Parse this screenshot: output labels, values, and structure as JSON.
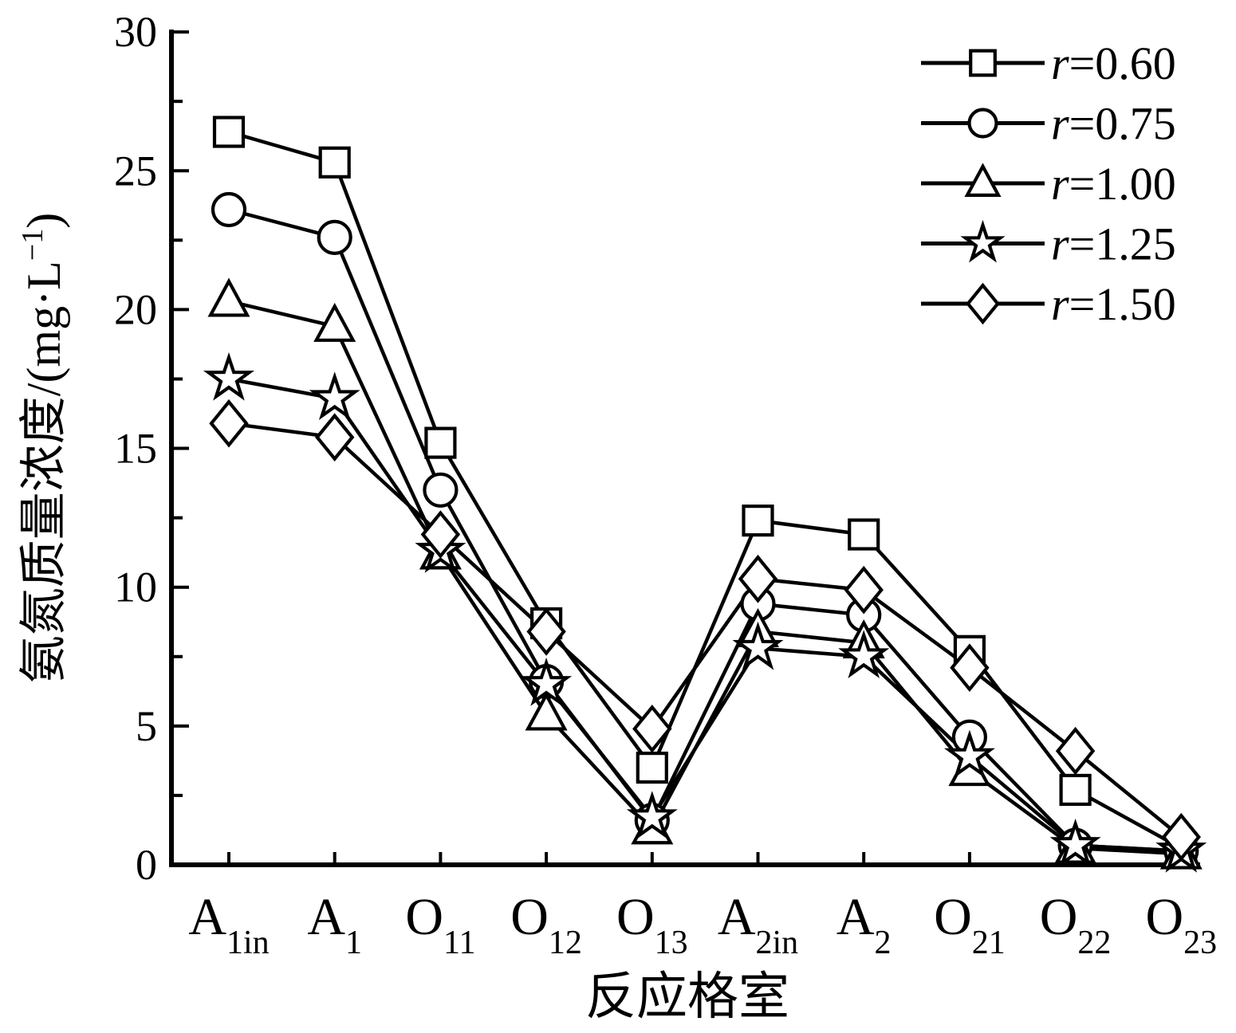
{
  "figure": {
    "background": "#ffffff",
    "line_color": "#000000"
  },
  "chart_data": {
    "type": "line",
    "title": "",
    "xlabel": "反应格室",
    "ylabel": "氨氮质量浓度/(mg·L⁻¹)",
    "ylabel_parts": {
      "main": "氨氮质量浓度/(mg·L",
      "sup": "−1",
      "close": ")"
    },
    "ylim": [
      0,
      30
    ],
    "y_major_ticks": [
      0,
      5,
      10,
      15,
      20,
      25,
      30
    ],
    "y_minor_ticks": [
      2.5,
      7.5,
      12.5,
      17.5,
      22.5,
      27.5
    ],
    "grid": false,
    "legend_position": "top-right-inside",
    "categories": [
      "A1in",
      "A1",
      "O11",
      "O12",
      "O13",
      "A2in",
      "A2",
      "O21",
      "O22",
      "O23"
    ],
    "category_labels": [
      {
        "base": "A",
        "sub": "1in"
      },
      {
        "base": "A",
        "sub": "1"
      },
      {
        "base": "O",
        "sub": "11"
      },
      {
        "base": "O",
        "sub": "12"
      },
      {
        "base": "O",
        "sub": "13"
      },
      {
        "base": "A",
        "sub": "2in"
      },
      {
        "base": "A",
        "sub": "2"
      },
      {
        "base": "O",
        "sub": "21"
      },
      {
        "base": "O",
        "sub": "22"
      },
      {
        "base": "O",
        "sub": "23"
      }
    ],
    "series": [
      {
        "name": "r=0.60",
        "r_symbol": "r",
        "value_text": "=0.60",
        "marker": "square",
        "values": [
          26.4,
          25.3,
          15.2,
          8.7,
          3.5,
          12.4,
          11.9,
          7.7,
          2.7,
          0.6
        ]
      },
      {
        "name": "r=0.75",
        "r_symbol": "r",
        "value_text": "=0.75",
        "marker": "circle",
        "values": [
          23.6,
          22.6,
          13.5,
          6.6,
          1.6,
          9.4,
          9.0,
          4.6,
          0.7,
          0.5
        ]
      },
      {
        "name": "r=1.00",
        "r_symbol": "r",
        "value_text": "=1.00",
        "marker": "triangle",
        "values": [
          20.3,
          19.4,
          11.2,
          5.4,
          1.3,
          8.4,
          8.0,
          3.4,
          0.6,
          0.4
        ]
      },
      {
        "name": "r=1.25",
        "r_symbol": "r",
        "value_text": "=1.25",
        "marker": "star",
        "values": [
          17.5,
          16.8,
          11.3,
          6.5,
          1.7,
          7.8,
          7.5,
          3.9,
          0.7,
          0.5
        ]
      },
      {
        "name": "r=1.50",
        "r_symbol": "r",
        "value_text": "=1.50",
        "marker": "diamond",
        "values": [
          15.9,
          15.4,
          11.9,
          8.4,
          4.9,
          10.3,
          9.9,
          7.1,
          4.1,
          1.0
        ]
      }
    ]
  }
}
